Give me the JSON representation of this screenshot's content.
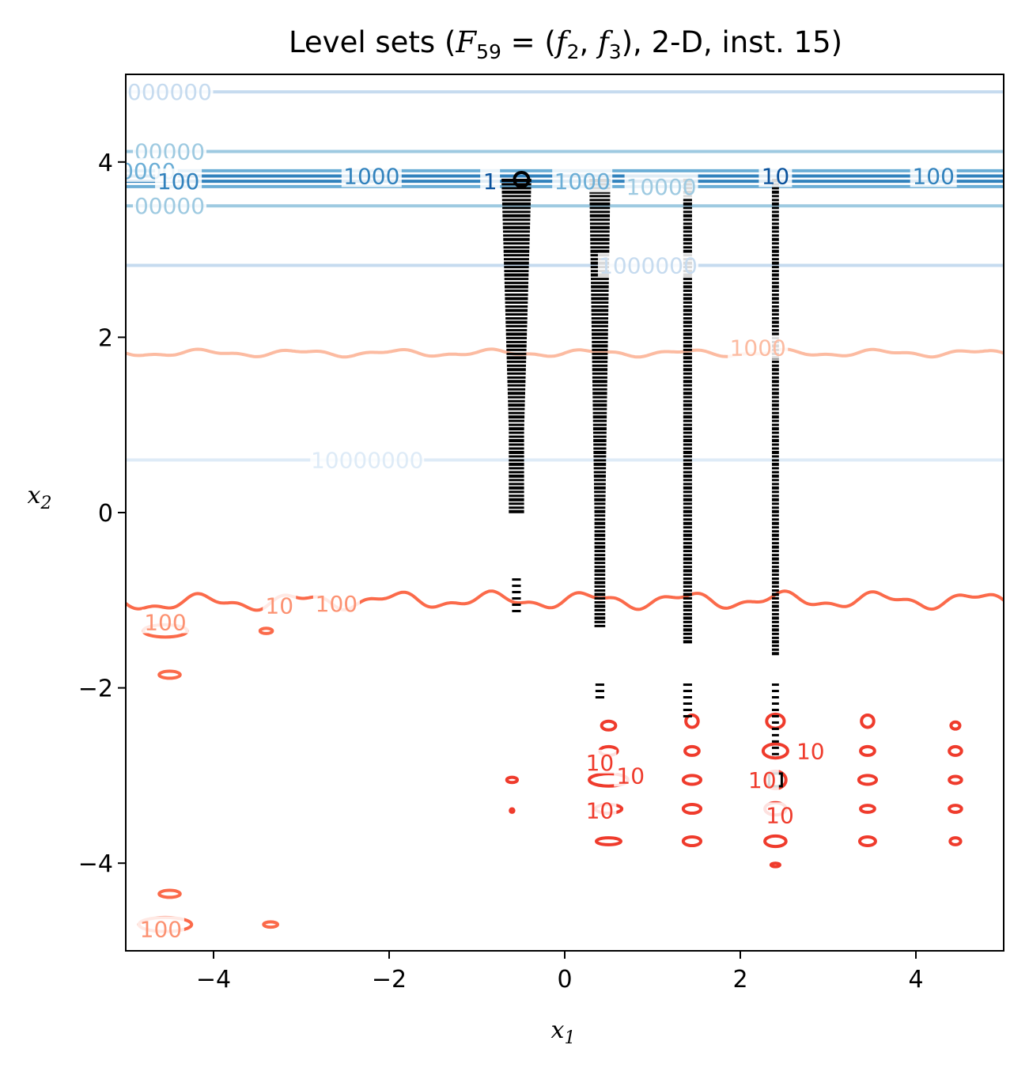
{
  "chart_data": {
    "type": "contour",
    "title": "Level sets (F59 = (f2, f3), 2-D, inst. 15)",
    "title_parts": {
      "prefix": "Level sets (",
      "F": "F",
      "F_sub": "59",
      "eq": " = (",
      "f2": "f",
      "f2_sub": "2",
      "comma": ", ",
      "f3": "f",
      "f3_sub": "3",
      "suffix": "), 2-D, inst. 15)"
    },
    "xlabel": "x",
    "xlabel_sub": "1",
    "ylabel": "x",
    "ylabel_sub": "2",
    "xlim": [
      -5,
      5
    ],
    "ylim": [
      -5,
      5
    ],
    "xticks": [
      -4,
      -2,
      0,
      2,
      4
    ],
    "yticks": [
      -4,
      -2,
      0,
      2,
      4
    ],
    "xtick_labels": [
      "−4",
      "−2",
      "0",
      "2",
      "4"
    ],
    "ytick_labels": [
      "−4",
      "−2",
      "0",
      "2",
      "4"
    ],
    "colors": {
      "blue_levels": [
        "#08519c",
        "#3182bd",
        "#6baed6",
        "#9ecae1",
        "#c6dbef",
        "#deebf7"
      ],
      "red_levels": [
        "#ef3b2c",
        "#fb6a4a",
        "#fc9272",
        "#fcbba1"
      ],
      "points": "#000000"
    },
    "blue_lines": [
      {
        "y": 4.8,
        "color": "#c6dbef"
      },
      {
        "y": 4.12,
        "color": "#9ecae1"
      },
      {
        "y": 3.9,
        "color": "#6baed6"
      },
      {
        "y": 3.84,
        "color": "#3182bd"
      },
      {
        "y": 3.78,
        "color": "#3182bd"
      },
      {
        "y": 3.72,
        "color": "#6baed6"
      },
      {
        "y": 3.5,
        "color": "#9ecae1"
      },
      {
        "y": 2.82,
        "color": "#c6dbef"
      },
      {
        "y": 0.6,
        "color": "#deebf7"
      }
    ],
    "blue_labels": [
      {
        "text": "000000",
        "x": -4.5,
        "y": 4.8,
        "color": "#c6dbef"
      },
      {
        "text": "00000",
        "x": -4.5,
        "y": 4.12,
        "color": "#9ecae1"
      },
      {
        "text": "0000",
        "x": -4.75,
        "y": 3.9,
        "color": "#6baed6"
      },
      {
        "text": "100",
        "x": -4.4,
        "y": 3.78,
        "color": "#3182bd"
      },
      {
        "text": "1000",
        "x": -2.2,
        "y": 3.84,
        "color": "#3182bd"
      },
      {
        "text": "1",
        "x": -0.85,
        "y": 3.78,
        "color": "#08519c"
      },
      {
        "text": "1000",
        "x": 0.2,
        "y": 3.78,
        "color": "#6baed6"
      },
      {
        "text": "10000",
        "x": 1.1,
        "y": 3.72,
        "color": "#9ecae1"
      },
      {
        "text": "10",
        "x": 2.4,
        "y": 3.84,
        "color": "#08519c"
      },
      {
        "text": "100",
        "x": 4.2,
        "y": 3.84,
        "color": "#3182bd"
      },
      {
        "text": "00000",
        "x": -4.5,
        "y": 3.5,
        "color": "#9ecae1"
      },
      {
        "text": "1000000",
        "x": 0.95,
        "y": 2.82,
        "color": "#c6dbef"
      },
      {
        "text": "10000000",
        "x": -2.25,
        "y": 0.6,
        "color": "#deebf7"
      }
    ],
    "red_lines": [
      {
        "y": 1.82,
        "color": "#fcbba1",
        "wave": 0.03
      },
      {
        "y": -1.0,
        "color": "#fb6a4a",
        "wave": 0.07
      }
    ],
    "red_labels": [
      {
        "text": "1000",
        "x": 2.2,
        "y": 1.88,
        "color": "#fcbba1"
      },
      {
        "text": "100",
        "x": -2.6,
        "y": -1.04,
        "color": "#fc9272"
      },
      {
        "text": "10",
        "x": -3.25,
        "y": -1.06,
        "color": "#fc9272"
      },
      {
        "text": "100",
        "x": -4.55,
        "y": -1.25,
        "color": "#fc9272"
      },
      {
        "text": "100",
        "x": -4.6,
        "y": -4.75,
        "color": "#fc9272"
      },
      {
        "text": "10",
        "x": 0.4,
        "y": -2.85,
        "color": "#ef3b2c"
      },
      {
        "text": "10",
        "x": 0.75,
        "y": -3.0,
        "color": "#ef3b2c"
      },
      {
        "text": "10",
        "x": 0.4,
        "y": -3.4,
        "color": "#ef3b2c"
      },
      {
        "text": "10",
        "x": 2.8,
        "y": -2.72,
        "color": "#ef3b2c"
      },
      {
        "text": "10",
        "x": 2.25,
        "y": -3.05,
        "color": "#ef3b2c"
      },
      {
        "text": "10",
        "x": 2.45,
        "y": -3.45,
        "color": "#ef3b2c"
      }
    ],
    "red_blobs": [
      {
        "x": -4.55,
        "y": -1.35,
        "rx": 0.25,
        "ry": 0.07,
        "color": "#fb6a4a"
      },
      {
        "x": -4.5,
        "y": -1.85,
        "rx": 0.12,
        "ry": 0.04,
        "color": "#fb6a4a"
      },
      {
        "x": -3.4,
        "y": -1.35,
        "rx": 0.07,
        "ry": 0.03,
        "color": "#fb6a4a"
      },
      {
        "x": -4.5,
        "y": -4.35,
        "rx": 0.12,
        "ry": 0.04,
        "color": "#fb6a4a"
      },
      {
        "x": -4.55,
        "y": -4.7,
        "rx": 0.3,
        "ry": 0.08,
        "color": "#fb6a4a"
      },
      {
        "x": -3.35,
        "y": -4.7,
        "rx": 0.08,
        "ry": 0.03,
        "color": "#fb6a4a"
      },
      {
        "x": -0.6,
        "y": -3.05,
        "rx": 0.06,
        "ry": 0.03,
        "color": "#ef3b2c"
      },
      {
        "x": -0.6,
        "y": -3.4,
        "rx": 0.02,
        "ry": 0.02,
        "color": "#ef3b2c"
      }
    ],
    "red_ellipse_columns": [
      {
        "x": 0.5,
        "ellipses": [
          [
            -2.43,
            0.08,
            0.05
          ],
          [
            -2.72,
            0.1,
            0.05
          ],
          [
            -3.05,
            0.22,
            0.07
          ],
          [
            -3.38,
            0.15,
            0.05
          ],
          [
            -3.75,
            0.14,
            0.04
          ]
        ]
      },
      {
        "x": 1.45,
        "ellipses": [
          [
            -2.38,
            0.07,
            0.07
          ],
          [
            -2.72,
            0.08,
            0.05
          ],
          [
            -3.05,
            0.1,
            0.05
          ],
          [
            -3.38,
            0.1,
            0.05
          ],
          [
            -3.75,
            0.1,
            0.05
          ]
        ]
      },
      {
        "x": 2.4,
        "ellipses": [
          [
            -2.38,
            0.1,
            0.08
          ],
          [
            -2.72,
            0.14,
            0.08
          ],
          [
            -3.05,
            0.12,
            0.1
          ],
          [
            -3.38,
            0.12,
            0.07
          ],
          [
            -3.75,
            0.12,
            0.06
          ],
          [
            -4.02,
            0.05,
            0.02
          ]
        ]
      },
      {
        "x": 3.45,
        "ellipses": [
          [
            -2.38,
            0.07,
            0.07
          ],
          [
            -2.72,
            0.08,
            0.05
          ],
          [
            -3.05,
            0.1,
            0.05
          ],
          [
            -3.38,
            0.08,
            0.04
          ],
          [
            -3.75,
            0.09,
            0.05
          ]
        ]
      },
      {
        "x": 4.45,
        "ellipses": [
          [
            -2.43,
            0.05,
            0.04
          ],
          [
            -2.72,
            0.07,
            0.05
          ],
          [
            -3.05,
            0.07,
            0.04
          ],
          [
            -3.38,
            0.07,
            0.04
          ],
          [
            -3.75,
            0.06,
            0.04
          ]
        ]
      }
    ],
    "point_columns": [
      {
        "x": -0.55,
        "half_width": 0.17,
        "y_top": 3.8,
        "y_bottom": 0.0,
        "extra": [
          [
            -0.75,
            -1.15
          ]
        ]
      },
      {
        "x": 0.4,
        "half_width": 0.12,
        "y_top": 3.8,
        "y_bottom": -1.3,
        "extra": [
          [
            -1.95,
            -2.1
          ]
        ]
      },
      {
        "x": 1.4,
        "half_width": 0.05,
        "y_top": 3.8,
        "y_bottom": -1.5,
        "extra": [
          [
            -1.95,
            -2.35
          ]
        ]
      },
      {
        "x": 2.4,
        "half_width": 0.04,
        "y_top": 3.8,
        "y_bottom": -1.6,
        "extra": [
          [
            -1.95,
            -2.75
          ]
        ]
      }
    ],
    "special_markers": [
      {
        "x": 2.4,
        "y": -3.05,
        "shape": "square"
      },
      {
        "x": -0.6,
        "y": 3.8,
        "shape": "circle"
      }
    ]
  }
}
